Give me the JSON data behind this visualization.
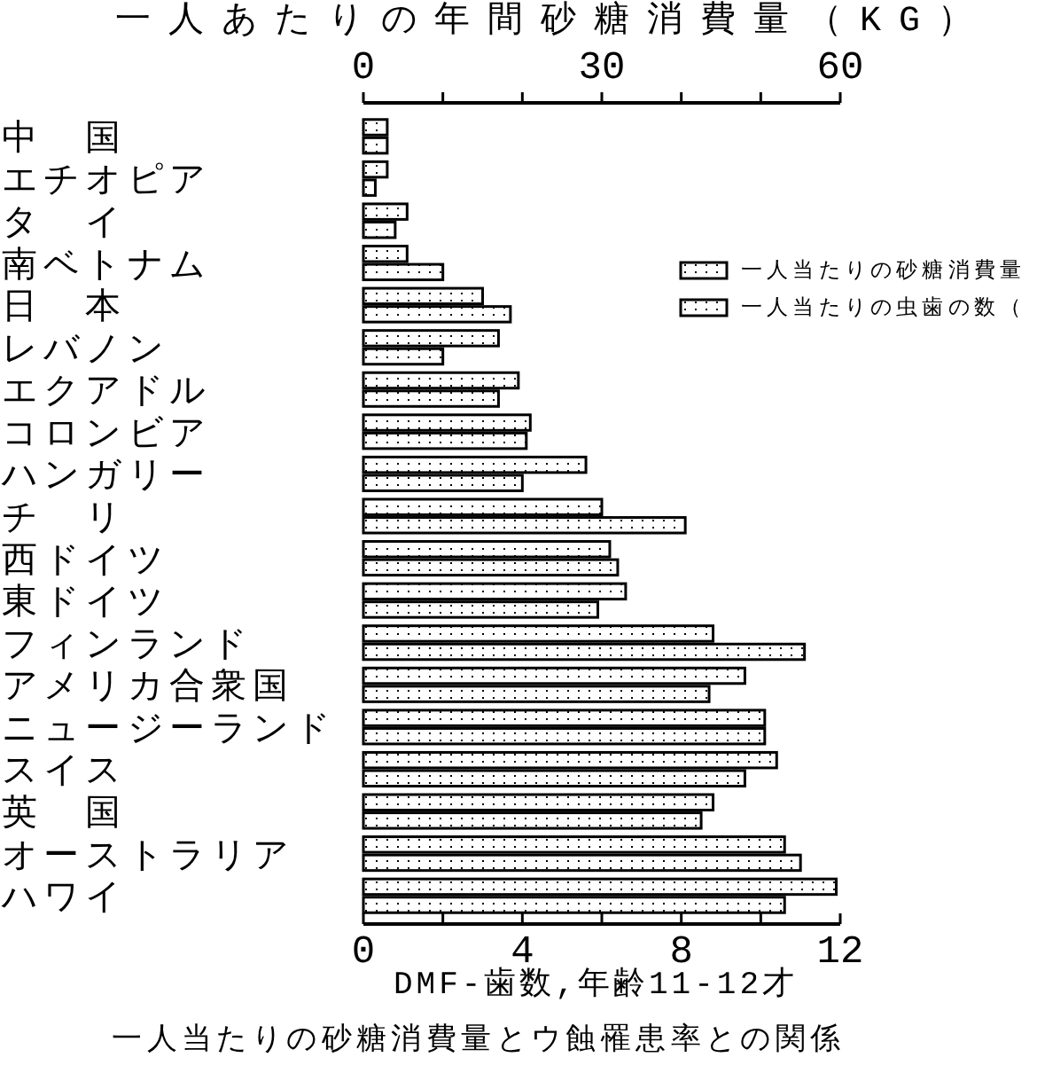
{
  "chart_data": {
    "type": "bar",
    "orientation": "horizontal",
    "title": "一人当たりの砂糖消費量とウ蝕罹患率との関係",
    "xlabel": "DMF-歯数,年齢11-12才",
    "x2label": "一人あたりの年間砂糖消費量（KG）",
    "categories": [
      "中　国",
      "エチオピア",
      "タ　イ",
      "南ベトナム",
      "日　本",
      "レバノン",
      "エクアドル",
      "コロンビア",
      "ハンガリー",
      "チ　リ",
      "西ドイツ",
      "東ドイツ",
      "フィンランド",
      "アメリカ合衆国",
      "ニュージーランド",
      "スイス",
      "英　国",
      "オーストラリア",
      "ハワイ"
    ],
    "series": [
      {
        "name": "一人当たりの砂糖消費量",
        "color": "#000000",
        "axis": "x2",
        "values": [
          3,
          3,
          5.5,
          5.5,
          15,
          17,
          19.5,
          21,
          28,
          30,
          31,
          33,
          44,
          48,
          50.5,
          52,
          44,
          53,
          59.5
        ]
      },
      {
        "name": "一人当たりの虫歯の数（",
        "color": "#000000",
        "values": [
          0.6,
          0.3,
          0.8,
          2.0,
          3.7,
          2.0,
          3.4,
          4.1,
          4.0,
          8.1,
          6.4,
          5.9,
          11.1,
          8.7,
          10.1,
          9.6,
          8.5,
          11.0,
          10.6
        ]
      }
    ],
    "xlim": [
      0,
      12
    ],
    "xticks": [
      0,
      {
        "value": 2,
        "label": null
      },
      4,
      {
        "value": 6,
        "label": null
      },
      8,
      {
        "value": 10,
        "label": null
      },
      12
    ],
    "x2lim": [
      0,
      60
    ],
    "x2ticks": [
      0,
      {
        "value": 10,
        "label": null
      },
      {
        "value": 20,
        "label": null
      },
      30,
      {
        "value": 40,
        "label": null
      },
      {
        "value": 50,
        "label": null
      },
      60
    ],
    "legend": "top right"
  }
}
